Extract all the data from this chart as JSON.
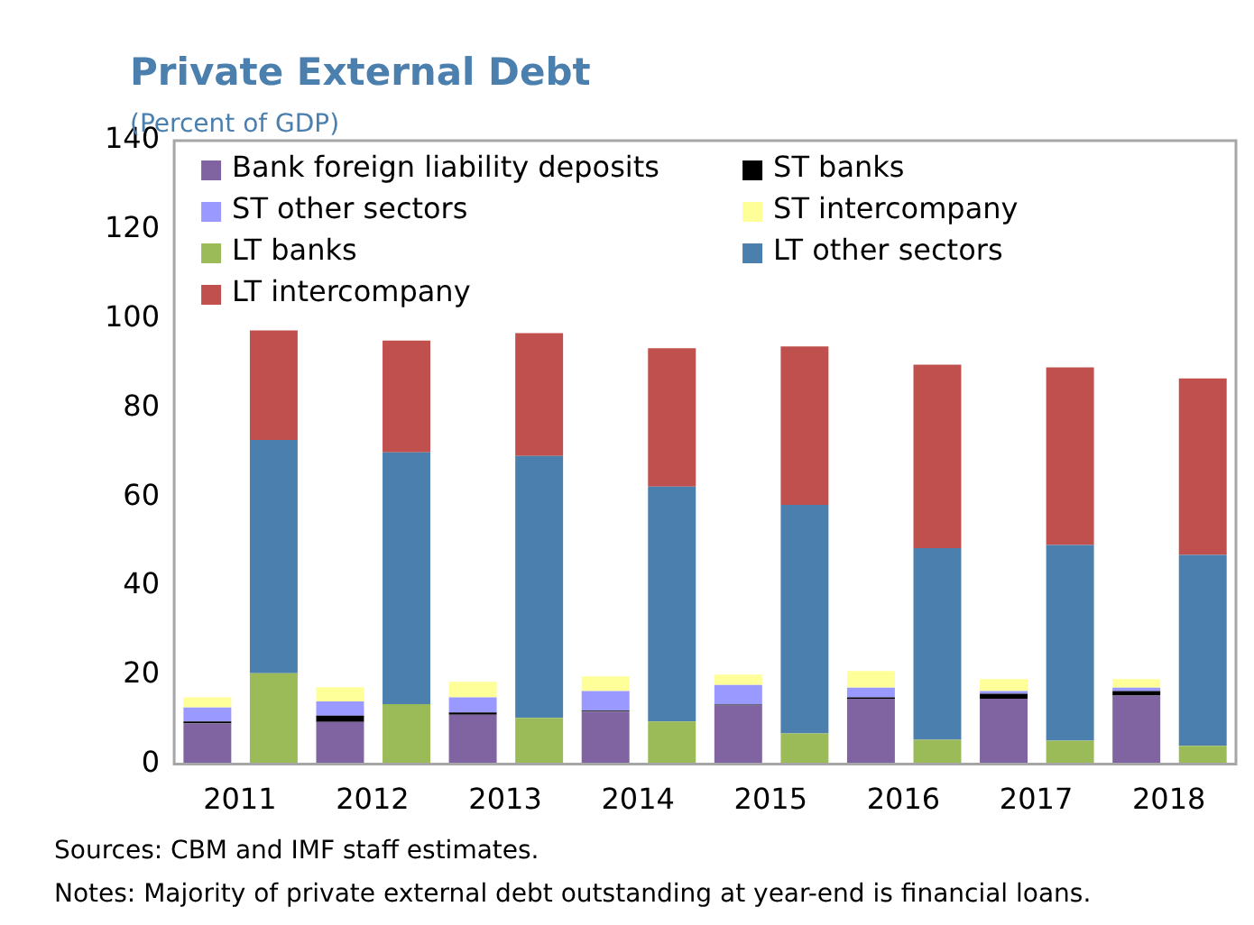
{
  "chart_data": {
    "type": "bar",
    "title": "Private External Debt",
    "subtitle": "(Percent of GDP)",
    "categories": [
      "2011",
      null,
      "2012",
      null,
      "2013",
      null,
      "2014",
      null,
      "2015",
      null,
      "2016",
      null,
      "2017",
      null,
      "2018",
      null
    ],
    "stacked": true,
    "series": [
      {
        "name": "Bank foreign liability deposits",
        "color": "#8064a2",
        "values": [
          9.2,
          null,
          9.5,
          null,
          11.1,
          null,
          11.8,
          null,
          13.2,
          null,
          14.7,
          null,
          14.7,
          null,
          15.4,
          null
        ]
      },
      {
        "name": "ST banks",
        "color": "#000000",
        "values": [
          0.4,
          null,
          1.4,
          null,
          0.5,
          null,
          0.2,
          null,
          0.2,
          null,
          0.3,
          null,
          1.1,
          null,
          1.0,
          null
        ]
      },
      {
        "name": "ST other sectors",
        "color": "#9999ff",
        "values": [
          3.1,
          null,
          3.2,
          null,
          3.4,
          null,
          4.4,
          null,
          4.4,
          null,
          2.2,
          null,
          0.6,
          null,
          0.8,
          null
        ]
      },
      {
        "name": "ST intercompany",
        "color": "#ffff99",
        "values": [
          2.3,
          null,
          3.2,
          null,
          3.5,
          null,
          3.3,
          null,
          2.3,
          null,
          3.7,
          null,
          2.7,
          null,
          1.9,
          null
        ]
      },
      {
        "name": "LT banks",
        "color": "#9bbb59",
        "values": [
          null,
          20.4,
          null,
          13.5,
          null,
          10.4,
          null,
          9.6,
          null,
          6.9,
          null,
          5.5,
          null,
          5.3,
          null,
          4.1
        ]
      },
      {
        "name": "LT other sectors",
        "color": "#4a7fae",
        "values": [
          null,
          52.4,
          null,
          56.5,
          null,
          58.8,
          null,
          52.7,
          null,
          51.3,
          null,
          43.0,
          null,
          43.9,
          null,
          42.9
        ]
      },
      {
        "name": "LT intercompany",
        "color": "#c0504d",
        "values": [
          null,
          24.6,
          null,
          25.1,
          null,
          27.6,
          null,
          31.1,
          null,
          35.6,
          null,
          41.2,
          null,
          39.9,
          null,
          39.6
        ]
      }
    ],
    "ylim": [
      0,
      140
    ],
    "yticks": [
      0,
      20,
      40,
      60,
      80,
      100,
      120,
      140
    ],
    "legend": "top left",
    "annotations": [
      "Sources: CBM and IMF staff estimates.",
      "Notes: Majority of private external debt outstanding at year-end is financial loans."
    ]
  }
}
